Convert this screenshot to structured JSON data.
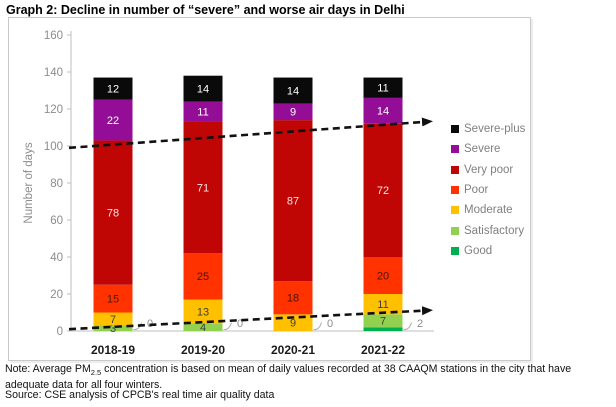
{
  "title": "Graph 2: Decline in number of “severe” and worse air days in Delhi",
  "note": {
    "prefix": "Note: Average PM",
    "subscript": "2.5",
    "suffix": " concentration is based on mean of daily values recorded at 38 CAAQM stations in the city that have adequate data for all four winters."
  },
  "source": "Source: CSE analysis of CPCB's real time air quality data",
  "chart_data": {
    "type": "bar",
    "stacked": true,
    "title": "Graph 2: Decline in number of “severe” and worse air days in Delhi",
    "xlabel": "",
    "ylabel": "Number of days",
    "ylim": [
      0,
      160
    ],
    "yticks": [
      0,
      20,
      40,
      60,
      80,
      100,
      120,
      140,
      160
    ],
    "grid": false,
    "legend_position": "right",
    "categories": [
      "2018-19",
      "2019-20",
      "2020-21",
      "2021-22"
    ],
    "series": [
      {
        "name": "Good",
        "color": "#00B050",
        "label_color": "#3F3F3F",
        "values": [
          0,
          0,
          0,
          2
        ]
      },
      {
        "name": "Satisfactory",
        "color": "#92D050",
        "label_color": "#3F3F3F",
        "values": [
          3,
          4,
          0,
          7
        ]
      },
      {
        "name": "Moderate",
        "color": "#FFC000",
        "label_color": "#3F3F3F",
        "values": [
          7,
          13,
          9,
          11
        ]
      },
      {
        "name": "Poor",
        "color": "#FF3200",
        "label_color": "#4A1505",
        "values": [
          15,
          25,
          18,
          20
        ]
      },
      {
        "name": "Very poor",
        "color": "#C00505",
        "label_color": "#F8E3E3",
        "values": [
          78,
          71,
          87,
          72
        ]
      },
      {
        "name": "Severe",
        "color": "#940D96",
        "label_color": "#FFFFFF",
        "values": [
          22,
          11,
          9,
          14
        ]
      },
      {
        "name": "Severe-plus",
        "color": "#0A0A0A",
        "label_color": "#FFFFFF",
        "values": [
          12,
          14,
          14,
          11
        ]
      }
    ],
    "totals": [
      137,
      138,
      137,
      137
    ],
    "zero_callouts": [
      "0",
      "0",
      "0",
      "2"
    ],
    "annotations": [
      {
        "type": "dashed-trend-arrow",
        "position": "upper",
        "from_value": 99,
        "to_value": 113
      },
      {
        "type": "dashed-trend-arrow",
        "position": "lower",
        "from_value": 1,
        "to_value": 11
      }
    ]
  }
}
